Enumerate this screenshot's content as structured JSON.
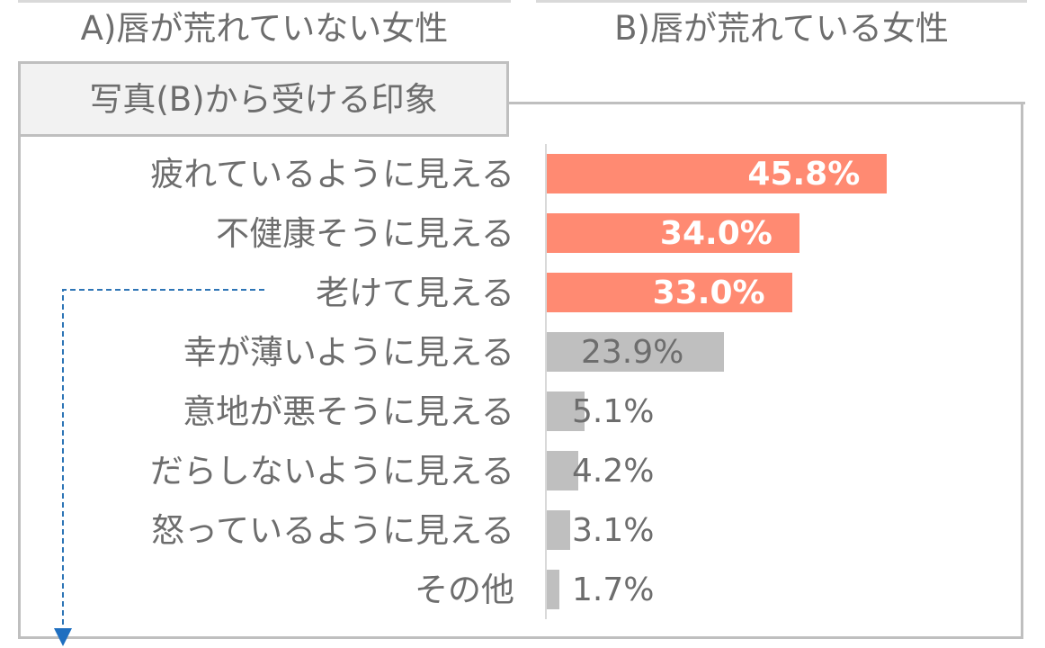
{
  "headers": {
    "a": "A)唇が荒れていない女性",
    "b": "B)唇が荒れている女性"
  },
  "chart_data": {
    "type": "bar",
    "orientation": "horizontal",
    "title": "写真(B)から受ける印象",
    "categories": [
      "疲れているように見える",
      "不健康そうに見える",
      "老けて見える",
      "幸が薄いように見える",
      "意地が悪そうに見える",
      "だらしないように見える",
      "怒っているように見える",
      "その他"
    ],
    "values": [
      45.8,
      34.0,
      33.0,
      23.9,
      5.1,
      4.2,
      3.1,
      1.7
    ],
    "value_labels": [
      "45.8%",
      "34.0%",
      "33.0%",
      "23.9%",
      "5.1%",
      "4.2%",
      "3.1%",
      "1.7%"
    ],
    "highlighted_count": 3,
    "colors": {
      "highlight": "#ff8a72",
      "normal": "#bfbfbf"
    },
    "grid": false
  }
}
